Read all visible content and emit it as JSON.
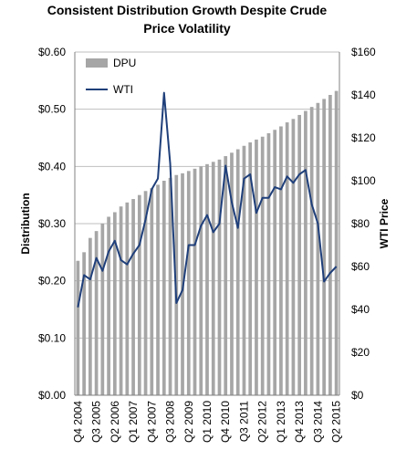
{
  "chart_data": {
    "type": "bar+line",
    "title_line1": "Consistent Distribution Growth Despite Crude",
    "title_line2": "Price Volatility",
    "ylabel_left": "Distribution",
    "ylabel_right": "WTI Price",
    "y_left_ticks": [
      "$0.00",
      "$0.10",
      "$0.20",
      "$0.30",
      "$0.40",
      "$0.50",
      "$0.60"
    ],
    "y_right_ticks": [
      "$0",
      "$20",
      "$40",
      "$60",
      "$80",
      "$100",
      "$120",
      "$140",
      "$160"
    ],
    "ylim_left": [
      0,
      0.6
    ],
    "ylim_right": [
      0,
      160
    ],
    "x_tick_labels": [
      "Q4 2004",
      "Q3 2005",
      "Q2 2006",
      "Q1 2007",
      "Q4 2007",
      "Q3 2008",
      "Q2 2009",
      "Q1 2010",
      "Q4 2010",
      "Q3 2011",
      "Q2 2012",
      "Q1 2013",
      "Q4 2013",
      "Q3 2014",
      "Q2 2015"
    ],
    "x_tick_step": 3,
    "categories": [
      "Q4 2004",
      "Q1 2005",
      "Q2 2005",
      "Q3 2005",
      "Q4 2005",
      "Q1 2006",
      "Q2 2006",
      "Q3 2006",
      "Q4 2006",
      "Q1 2007",
      "Q2 2007",
      "Q3 2007",
      "Q4 2007",
      "Q1 2008",
      "Q2 2008",
      "Q3 2008",
      "Q4 2008",
      "Q1 2009",
      "Q2 2009",
      "Q3 2009",
      "Q4 2009",
      "Q1 2010",
      "Q2 2010",
      "Q3 2010",
      "Q4 2010",
      "Q1 2011",
      "Q2 2011",
      "Q3 2011",
      "Q4 2011",
      "Q1 2012",
      "Q2 2012",
      "Q3 2012",
      "Q4 2012",
      "Q1 2013",
      "Q2 2013",
      "Q3 2013",
      "Q4 2013",
      "Q1 2014",
      "Q2 2014",
      "Q3 2014",
      "Q4 2014",
      "Q1 2015",
      "Q2 2015"
    ],
    "series": [
      {
        "name": "DPU",
        "type": "bar",
        "axis": "left",
        "color": "#a6a6a6",
        "values": [
          0.235,
          0.25,
          0.275,
          0.287,
          0.3,
          0.312,
          0.32,
          0.33,
          0.337,
          0.343,
          0.35,
          0.357,
          0.362,
          0.368,
          0.375,
          0.38,
          0.385,
          0.388,
          0.392,
          0.396,
          0.4,
          0.404,
          0.408,
          0.412,
          0.418,
          0.424,
          0.43,
          0.436,
          0.442,
          0.447,
          0.452,
          0.458,
          0.464,
          0.47,
          0.477,
          0.483,
          0.49,
          0.497,
          0.504,
          0.511,
          0.518,
          0.525,
          0.532
        ]
      },
      {
        "name": "WTI",
        "type": "line",
        "axis": "right",
        "color": "#1f3f7a",
        "values": [
          41,
          56,
          54,
          64,
          58,
          67,
          72,
          63,
          61,
          66,
          70,
          82,
          96,
          101,
          141,
          108,
          43,
          49,
          70,
          70,
          79,
          84,
          76,
          80,
          107,
          90,
          78,
          101,
          103,
          85,
          92,
          92,
          97,
          96,
          102,
          99,
          103,
          105,
          89,
          80,
          53,
          57,
          60
        ]
      }
    ],
    "legend": [
      {
        "name": "DPU",
        "style": "bar"
      },
      {
        "name": "WTI",
        "style": "line"
      }
    ],
    "legend_position": "top-left",
    "grid": true
  }
}
